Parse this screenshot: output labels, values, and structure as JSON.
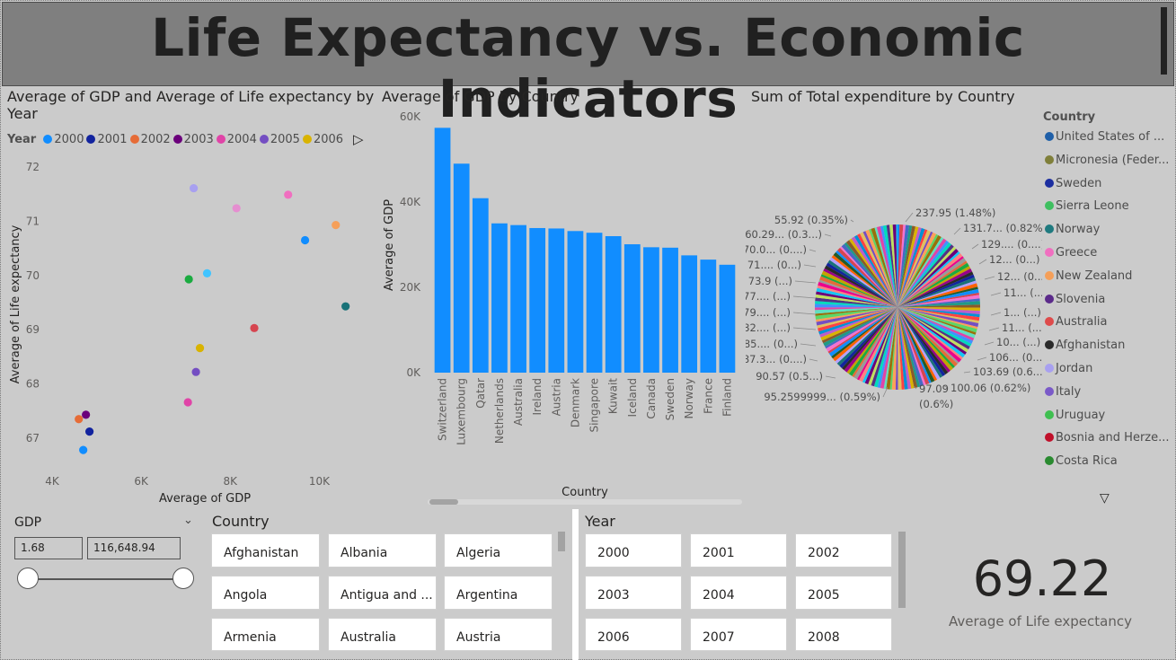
{
  "banner": {
    "title": "Life Expectancy vs. Economic Indicators"
  },
  "scatter": {
    "title": "Average of GDP and Average of Life expectancy by Year",
    "title_line1": "Average of GDP and Average of Life expectancy by",
    "title_line2": "Year",
    "legend_label": "Year",
    "legend": [
      {
        "label": "2000",
        "color": "#118dff"
      },
      {
        "label": "2001",
        "color": "#12239e"
      },
      {
        "label": "2002",
        "color": "#e66c37"
      },
      {
        "label": "2003",
        "color": "#6b007b"
      },
      {
        "label": "2004",
        "color": "#e044a7"
      },
      {
        "label": "2005",
        "color": "#744ec2"
      },
      {
        "label": "2006",
        "color": "#d9b300"
      }
    ],
    "play_icon": "play-icon"
  },
  "bar": {
    "title": "Average of GDP by Country"
  },
  "pie": {
    "title": "Sum of Total expenditure by Country",
    "legend_title": "Country",
    "legend": [
      {
        "label": "United States of ...",
        "color": "#1f5fa8"
      },
      {
        "label": "Micronesia (Feder...",
        "color": "#7f7f3a"
      },
      {
        "label": "Sweden",
        "color": "#1c2ea0"
      },
      {
        "label": "Sierra Leone",
        "color": "#3fbf60"
      },
      {
        "label": "Norway",
        "color": "#1f7a7f"
      },
      {
        "label": "Greece",
        "color": "#f06fc0"
      },
      {
        "label": "New Zealand",
        "color": "#f59f59"
      },
      {
        "label": "Slovenia",
        "color": "#5b2a8a"
      },
      {
        "label": "Australia",
        "color": "#de4b4b"
      },
      {
        "label": "Afghanistan",
        "color": "#2a2a2a"
      },
      {
        "label": "Jordan",
        "color": "#a8a0f0"
      },
      {
        "label": "Italy",
        "color": "#7a5ac8"
      },
      {
        "label": "Uruguay",
        "color": "#3fbf50"
      },
      {
        "label": "Bosnia and Herze...",
        "color": "#c0102a"
      },
      {
        "label": "Costa Rica",
        "color": "#2a8a30"
      }
    ],
    "labels": [
      {
        "text": "55.92 (0.35%)"
      },
      {
        "text": "60.29... (0.3...)"
      },
      {
        "text": "70.0... (0....)"
      },
      {
        "text": "71.... (0...)"
      },
      {
        "text": "73.9 (...)"
      },
      {
        "text": "77.... (...)"
      },
      {
        "text": "79.... (...)"
      },
      {
        "text": "82.... (...)"
      },
      {
        "text": "85.... (0...)"
      },
      {
        "text": "87.3... (0....)"
      },
      {
        "text": "90.57 (0.5...)"
      },
      {
        "text": "95.2599999... (0.59%)"
      },
      {
        "text": "237.95 (1.48%)"
      },
      {
        "text": "131.7... (0.82%)"
      },
      {
        "text": "129.... (0....)"
      },
      {
        "text": "12... (0...)"
      },
      {
        "text": "12... (0...)"
      },
      {
        "text": "11... (...)"
      },
      {
        "text": "1... (...)"
      },
      {
        "text": "11... (...)"
      },
      {
        "text": "10... (...)"
      },
      {
        "text": "106... (0....)"
      },
      {
        "text": "103.69 (0.6...)"
      },
      {
        "text": "100.06 (0.62%)"
      },
      {
        "text": "97.09"
      },
      {
        "text": "(0.6%)"
      }
    ]
  },
  "gdp_slicer": {
    "label": "GDP",
    "min_value": "1.68",
    "max_value": "116,648.94"
  },
  "country_slicer": {
    "header": "Country",
    "items": [
      "Afghanistan",
      "Albania",
      "Algeria",
      "Angola",
      "Antigua and ...",
      "Argentina",
      "Armenia",
      "Australia",
      "Austria"
    ]
  },
  "year_slicer": {
    "header": "Year",
    "items": [
      "2000",
      "2001",
      "2002",
      "2003",
      "2004",
      "2005",
      "2006",
      "2007",
      "2008"
    ]
  },
  "kpi": {
    "value": "69.22",
    "label": "Average of Life expectancy"
  },
  "chart_data": [
    {
      "type": "scatter",
      "title": "Average of GDP and Average of Life expectancy by Year",
      "xlabel": "Average of GDP",
      "ylabel": "Average of Life expectancy",
      "xlim": [
        3900,
        11000
      ],
      "ylim": [
        66.6,
        72.1
      ],
      "xticks": [
        "4K",
        "6K",
        "8K",
        "10K"
      ],
      "xtick_values": [
        4000,
        6000,
        8000,
        10000
      ],
      "yticks": [
        "67",
        "68",
        "69",
        "70",
        "71",
        "72"
      ],
      "ytick_values": [
        67,
        68,
        69,
        70,
        71,
        72
      ],
      "points": [
        {
          "x": 4700,
          "y": 66.78,
          "color": "#118dff"
        },
        {
          "x": 4840,
          "y": 67.12,
          "color": "#12239e"
        },
        {
          "x": 4600,
          "y": 67.35,
          "color": "#e66c37"
        },
        {
          "x": 4760,
          "y": 67.43,
          "color": "#6b007b"
        },
        {
          "x": 7050,
          "y": 67.66,
          "color": "#e044a7"
        },
        {
          "x": 7230,
          "y": 68.22,
          "color": "#744ec2"
        },
        {
          "x": 7320,
          "y": 68.66,
          "color": "#d9b300"
        },
        {
          "x": 7070,
          "y": 69.93,
          "color": "#1aab40"
        },
        {
          "x": 7480,
          "y": 70.04,
          "color": "#41c4ff"
        },
        {
          "x": 8540,
          "y": 69.03,
          "color": "#d64550"
        },
        {
          "x": 10590,
          "y": 69.43,
          "color": "#197278"
        },
        {
          "x": 9680,
          "y": 70.65,
          "color": "#118dff"
        },
        {
          "x": 8140,
          "y": 71.24,
          "color": "#e58ed0"
        },
        {
          "x": 7180,
          "y": 71.61,
          "color": "#a8a0f0"
        },
        {
          "x": 9300,
          "y": 71.49,
          "color": "#f06fc0"
        },
        {
          "x": 10370,
          "y": 70.93,
          "color": "#f59f59"
        }
      ],
      "legend_placement": "top-left"
    },
    {
      "type": "bar",
      "title": "Average of GDP by Country",
      "xlabel": "Country",
      "ylabel": "Average of GDP",
      "ylim": [
        0,
        60000
      ],
      "yticks": [
        "0K",
        "20K",
        "40K",
        "60K"
      ],
      "ytick_values": [
        0,
        20000,
        40000,
        60000
      ],
      "categories": [
        "Switzerland",
        "Luxembourg",
        "Qatar",
        "Netherlands",
        "Australia",
        "Ireland",
        "Austria",
        "Denmark",
        "Singapore",
        "Kuwait",
        "Iceland",
        "Canada",
        "Sweden",
        "Norway",
        "France",
        "Finland"
      ],
      "values": [
        57400,
        49000,
        40900,
        35000,
        34600,
        33900,
        33800,
        33200,
        32800,
        32000,
        30100,
        29400,
        29300,
        27500,
        26500,
        25300
      ],
      "color": "#118dff"
    },
    {
      "type": "pie",
      "title": "Sum of Total expenditure by Country",
      "legend_title": "Country",
      "legend_placement": "right",
      "slice_count": 180
    }
  ]
}
